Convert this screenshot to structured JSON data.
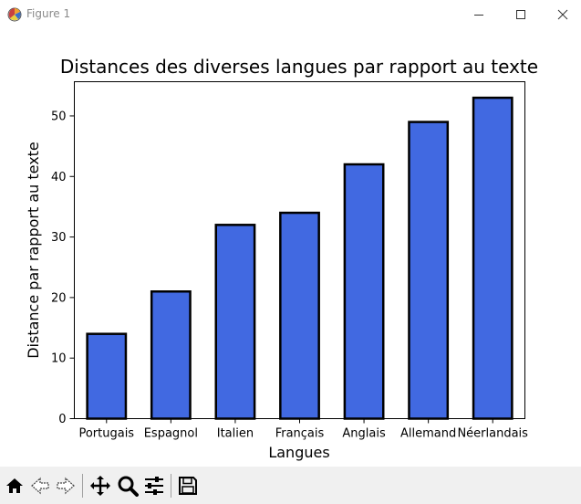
{
  "window": {
    "title": "Figure 1",
    "icons": {
      "app": "matplotlib-icon",
      "minimize": "minimize-icon",
      "maximize": "maximize-icon",
      "close": "close-icon"
    }
  },
  "toolbar": {
    "buttons": [
      {
        "name": "home-button",
        "icon": "home-icon"
      },
      {
        "name": "back-button",
        "icon": "back-arrow-icon"
      },
      {
        "name": "forward-button",
        "icon": "forward-arrow-icon"
      },
      {
        "name": "pan-button",
        "icon": "move-icon"
      },
      {
        "name": "zoom-button",
        "icon": "zoom-icon"
      },
      {
        "name": "configure-subplots-button",
        "icon": "sliders-icon"
      },
      {
        "name": "save-button",
        "icon": "save-icon"
      }
    ]
  },
  "chart_data": {
    "type": "bar",
    "title": "Distances des diverses langues par rapport au texte",
    "xlabel": "Langues",
    "ylabel": "Distance par rapport au texte",
    "categories": [
      "Portugais",
      "Espagnol",
      "Italien",
      "Français",
      "Anglais",
      "Allemand",
      "Néerlandais"
    ],
    "values": [
      14,
      21,
      32,
      34,
      42,
      49,
      53
    ],
    "yticks": [
      "0",
      "10",
      "20",
      "30",
      "40",
      "50"
    ],
    "ylim": [
      0,
      55.65
    ],
    "grid": false,
    "legend": "none",
    "colors": {
      "bar_fill": "#4169e1",
      "bar_edge": "#000000"
    }
  }
}
